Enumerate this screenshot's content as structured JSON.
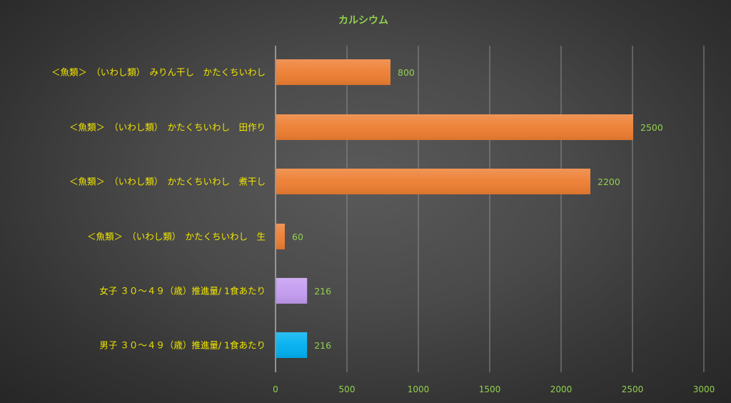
{
  "chart_data": {
    "type": "bar",
    "orientation": "horizontal",
    "title": "カルシウム",
    "xlabel": "",
    "ylabel": "",
    "xlim": [
      0,
      3000
    ],
    "ticks": [
      "0",
      "500",
      "1000",
      "1500",
      "2000",
      "2500",
      "3000"
    ],
    "tick_values": [
      0,
      500,
      1000,
      1500,
      2000,
      2500,
      3000
    ],
    "grid": "vertical",
    "legend": "none",
    "categories": [
      "＜魚類＞　（いわし類）　みりん干し　かたくちいわし",
      "＜魚類＞　（いわし類）　かたくちいわし　田作り",
      "＜魚類＞　（いわし類）　かたくちいわし　煮干し",
      "＜魚類＞　（いわし類）　かたくちいわし　生",
      "女子 ３０～４９（歳）推進量/ 1食あたり",
      "男子 ３０～４９（歳）推進量/ 1食あたり"
    ],
    "values": [
      800,
      2500,
      2200,
      60,
      216,
      216
    ],
    "data_labels": [
      "800",
      "2500",
      "2200",
      "60",
      "216",
      "216"
    ],
    "colors": [
      "#ed7d31",
      "#ed7d31",
      "#ed7d31",
      "#ed7d31",
      "#c39bf0",
      "#00b0f0"
    ]
  },
  "style": {
    "title_color": "#92d050",
    "label_color": "#f2e600",
    "tick_color": "#92d050",
    "data_label_color": "#92d050",
    "grid_color": "#8c8c8c",
    "axis_color": "#bfbfbf"
  }
}
